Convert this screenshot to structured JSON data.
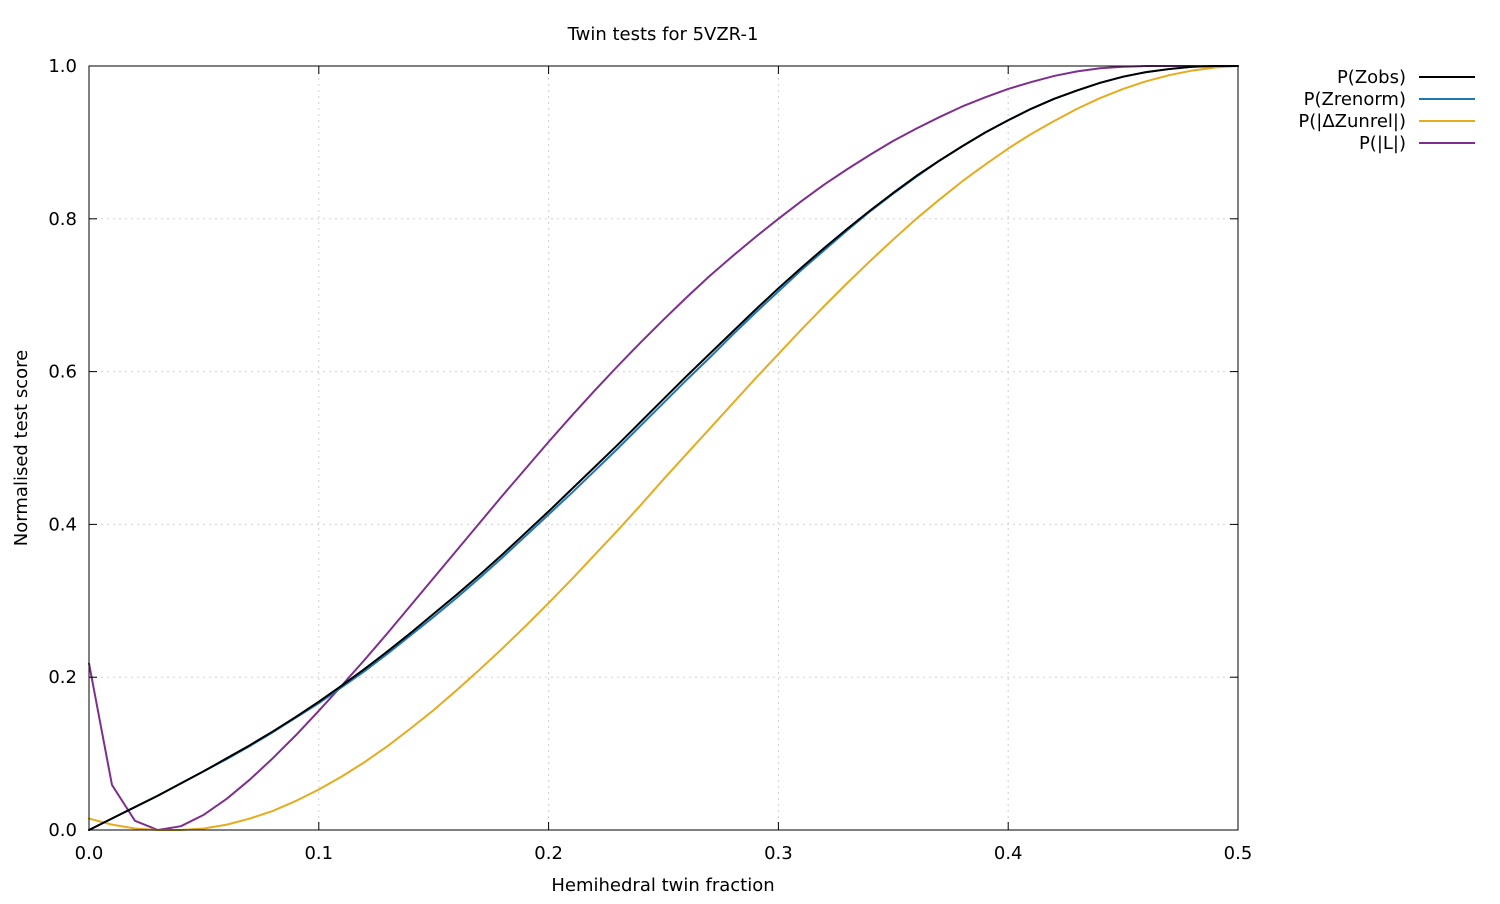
{
  "chart_data": {
    "type": "line",
    "title": "Twin tests for 5VZR-1",
    "xlabel": "Hemihedral twin fraction",
    "ylabel": "Normalised test score",
    "xlim": [
      0,
      0.5
    ],
    "ylim": [
      0,
      1
    ],
    "grid": true,
    "legend_position": "top-right-outside",
    "x_ticks": [
      0,
      0.1,
      0.2,
      0.3,
      0.4,
      0.5
    ],
    "x_tick_labels": [
      "0.0",
      "0.1",
      "0.2",
      "0.3",
      "0.4",
      "0.5"
    ],
    "y_ticks": [
      0,
      0.2,
      0.4,
      0.6,
      0.8,
      1.0
    ],
    "y_tick_labels": [
      "0.0",
      "0.2",
      "0.4",
      "0.6",
      "0.8",
      "1.0"
    ],
    "x": [
      0,
      0.01,
      0.02,
      0.03,
      0.04,
      0.05,
      0.06,
      0.07,
      0.08,
      0.09,
      0.1,
      0.11,
      0.12,
      0.13,
      0.14,
      0.15,
      0.16,
      0.17,
      0.18,
      0.19,
      0.2,
      0.21,
      0.22,
      0.23,
      0.24,
      0.25,
      0.26,
      0.27,
      0.28,
      0.29,
      0.3,
      0.31,
      0.32,
      0.33,
      0.34,
      0.35,
      0.36,
      0.37,
      0.38,
      0.39,
      0.4,
      0.41,
      0.42,
      0.43,
      0.44,
      0.45,
      0.46,
      0.47,
      0.48,
      0.49,
      0.5
    ],
    "series": [
      {
        "name": "P(Zobs)",
        "color": "#000000",
        "values": [
          0.0,
          0.015,
          0.03,
          0.045,
          0.061,
          0.077,
          0.094,
          0.111,
          0.129,
          0.148,
          0.168,
          0.189,
          0.211,
          0.234,
          0.258,
          0.283,
          0.308,
          0.334,
          0.361,
          0.389,
          0.417,
          0.446,
          0.475,
          0.504,
          0.534,
          0.564,
          0.594,
          0.623,
          0.652,
          0.681,
          0.709,
          0.736,
          0.762,
          0.787,
          0.811,
          0.834,
          0.856,
          0.876,
          0.895,
          0.913,
          0.929,
          0.944,
          0.957,
          0.968,
          0.978,
          0.986,
          0.992,
          0.996,
          0.999,
          1.0,
          1.0
        ]
      },
      {
        "name": "P(Zrenorm)",
        "color": "#1f77b4",
        "values": [
          0.0,
          0.015,
          0.03,
          0.045,
          0.061,
          0.077,
          0.093,
          0.11,
          0.128,
          0.147,
          0.166,
          0.187,
          0.208,
          0.231,
          0.255,
          0.279,
          0.304,
          0.33,
          0.357,
          0.385,
          0.413,
          0.441,
          0.47,
          0.499,
          0.529,
          0.559,
          0.589,
          0.618,
          0.648,
          0.677,
          0.705,
          0.733,
          0.759,
          0.785,
          0.81,
          0.833,
          0.855,
          0.876,
          0.895,
          0.913,
          0.929,
          0.944,
          0.957,
          0.968,
          0.978,
          0.986,
          0.992,
          0.996,
          0.999,
          1.0,
          1.0
        ]
      },
      {
        "name": "P(|ΔZunrel|)",
        "color": "#e6ab1e",
        "values": [
          0.015,
          0.007,
          0.002,
          0.0,
          0.0,
          0.002,
          0.007,
          0.015,
          0.025,
          0.038,
          0.053,
          0.07,
          0.089,
          0.11,
          0.133,
          0.157,
          0.183,
          0.21,
          0.238,
          0.267,
          0.297,
          0.328,
          0.36,
          0.392,
          0.425,
          0.459,
          0.492,
          0.525,
          0.558,
          0.591,
          0.623,
          0.655,
          0.686,
          0.716,
          0.745,
          0.773,
          0.8,
          0.825,
          0.849,
          0.871,
          0.892,
          0.911,
          0.928,
          0.944,
          0.958,
          0.97,
          0.98,
          0.988,
          0.994,
          0.998,
          1.0
        ]
      },
      {
        "name": "P(|L|)",
        "color": "#7e2f8e",
        "values": [
          0.218,
          0.059,
          0.012,
          0.0,
          0.005,
          0.02,
          0.041,
          0.066,
          0.094,
          0.124,
          0.156,
          0.189,
          0.223,
          0.258,
          0.294,
          0.33,
          0.366,
          0.402,
          0.438,
          0.473,
          0.508,
          0.542,
          0.575,
          0.607,
          0.638,
          0.668,
          0.697,
          0.725,
          0.751,
          0.776,
          0.8,
          0.823,
          0.845,
          0.865,
          0.884,
          0.902,
          0.918,
          0.933,
          0.947,
          0.959,
          0.97,
          0.979,
          0.987,
          0.993,
          0.997,
          0.999,
          1.0,
          1.0,
          1.0,
          1.0,
          1.0
        ]
      }
    ]
  }
}
